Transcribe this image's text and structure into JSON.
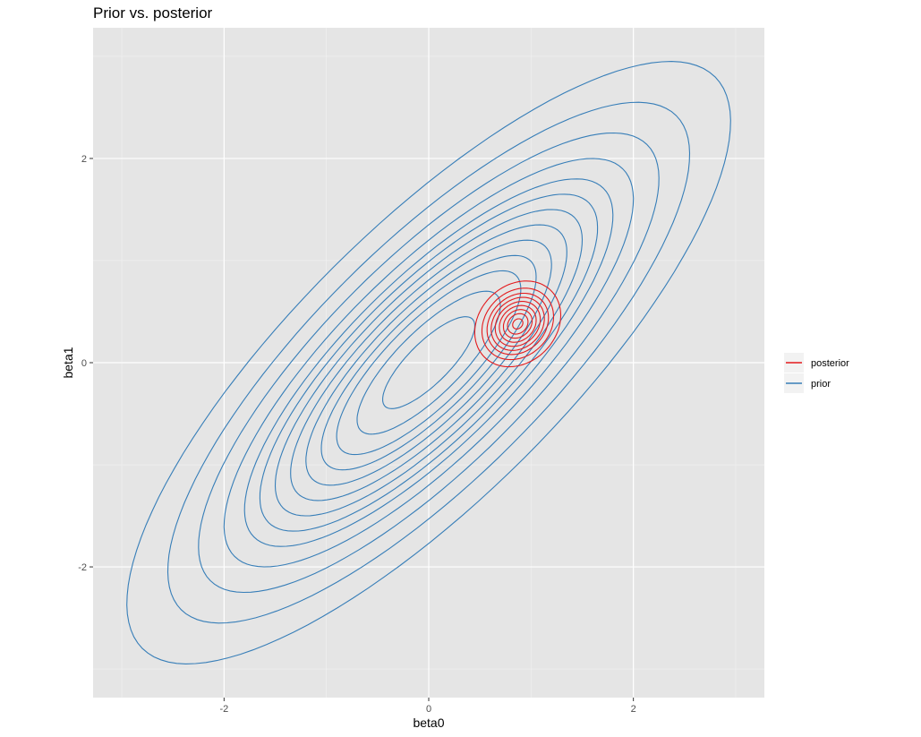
{
  "chart_data": {
    "type": "contour",
    "title": "Prior vs. posterior",
    "xlabel": "beta0",
    "ylabel": "beta1",
    "xlim": [
      -3.28,
      3.28
    ],
    "ylim": [
      -3.28,
      3.28
    ],
    "x_ticks": [
      -2,
      0,
      2
    ],
    "y_ticks": [
      -2,
      0,
      2
    ],
    "x_tick_labels": [
      "-2",
      "0",
      "2"
    ],
    "y_tick_labels": [
      "-2",
      "0",
      "2"
    ],
    "grid": true,
    "legend_position": "right",
    "legend": [
      {
        "name": "posterior",
        "color": "#e41a1c"
      },
      {
        "name": "prior",
        "color": "#377eb8"
      }
    ],
    "series": [
      {
        "name": "prior",
        "color": "#377eb8",
        "center": [
          0.0,
          0.0
        ],
        "sd": [
          1.0,
          1.0
        ],
        "correlation": 0.8,
        "contour_mahalanobis_radii": [
          0.45,
          0.7,
          0.9,
          1.05,
          1.2,
          1.35,
          1.5,
          1.65,
          1.8,
          2.0,
          2.25,
          2.55,
          2.95
        ]
      },
      {
        "name": "posterior",
        "color": "#e41a1c",
        "center": [
          0.87,
          0.38
        ],
        "sd": [
          0.2,
          0.2
        ],
        "correlation": 0.2,
        "contour_mahalanobis_radii": [
          0.25,
          0.5,
          0.7,
          0.9,
          1.1,
          1.3,
          1.5,
          1.75,
          2.1
        ]
      }
    ]
  }
}
